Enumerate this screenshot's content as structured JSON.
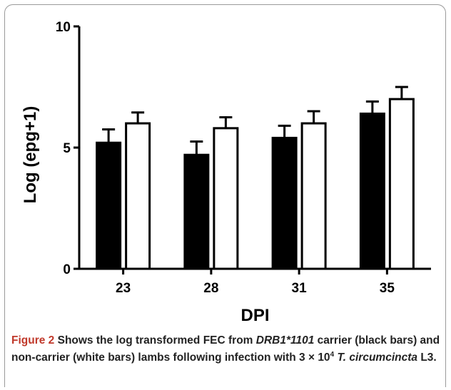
{
  "chart_data": {
    "type": "bar",
    "categories": [
      "23",
      "28",
      "31",
      "35"
    ],
    "series": [
      {
        "name": "",
        "fill": "#000000",
        "values": [
          5.2,
          4.7,
          5.4,
          6.4
        ],
        "errors": [
          0.55,
          0.55,
          0.5,
          0.5
        ]
      },
      {
        "name": "",
        "fill": "#ffffff",
        "values": [
          6.0,
          5.8,
          6.0,
          7.0
        ],
        "errors": [
          0.45,
          0.45,
          0.5,
          0.5
        ]
      }
    ],
    "xlabel": "DPI",
    "ylabel": "Log (epg+1)",
    "ylim": [
      0,
      10
    ],
    "yticks": [
      "0",
      "5",
      "10"
    ],
    "grid": false
  },
  "caption": {
    "label": "Figure 2",
    "text_1": " Shows the log transformed FEC from ",
    "gene": "DRB1*1101",
    "text_2": " carrier (black bars) and non-carrier (white bars) lambs following infection with 3 × 10",
    "exponent": "4",
    "species": "T. circumcincta",
    "stage": "L3",
    "end": "."
  }
}
